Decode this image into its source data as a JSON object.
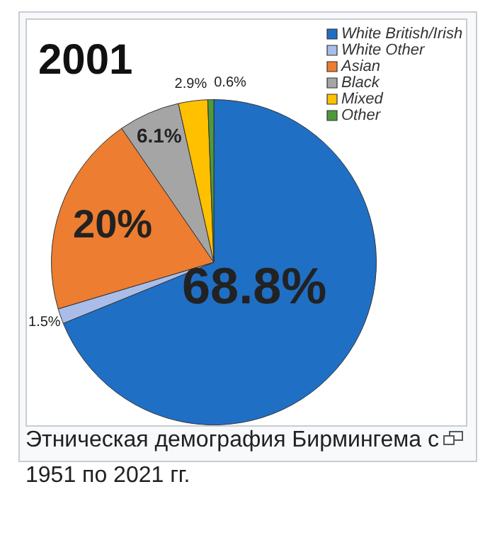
{
  "chart_data": {
    "type": "pie",
    "title": "2001",
    "categories": [
      "White British/Irish",
      "White Other",
      "Asian",
      "Black",
      "Mixed",
      "Other"
    ],
    "values": [
      68.8,
      1.5,
      20,
      6.1,
      2.9,
      0.6
    ],
    "colors": [
      "#1f6fc5",
      "#a9bde8",
      "#ed7d31",
      "#a5a5a5",
      "#ffc000",
      "#4e9a3a"
    ],
    "value_labels": [
      "68.8%",
      "1.5%",
      "20%",
      "6.1%",
      "2.9%",
      "0.6%"
    ],
    "legend": "top right",
    "annotations": [
      "Этническая демография Бирмингема с 1951 по 2021 гг."
    ]
  }
}
